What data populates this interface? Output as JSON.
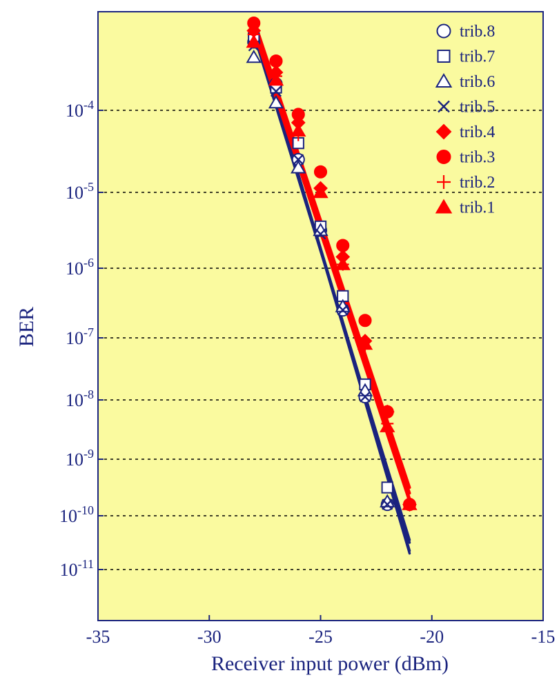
{
  "chart_data": {
    "type": "scatter",
    "title": "",
    "xlabel": "Receiver input power (dBm)",
    "ylabel": "BER",
    "xlim": [
      -35,
      -15
    ],
    "ylim_exp": [
      -12,
      -2.7
    ],
    "y_scale": "log",
    "x_ticks": [
      "-35",
      "-30",
      "-25",
      "-20",
      "-15"
    ],
    "x_tick_values": [
      -35,
      -30,
      -25,
      -20,
      -15
    ],
    "y_tick_exps": [
      -4,
      -5,
      -6,
      -7,
      -8,
      -9,
      -10,
      -11
    ],
    "y_ticks": [
      {
        "base": "10",
        "exp": "-4"
      },
      {
        "base": "10",
        "exp": "-5"
      },
      {
        "base": "10",
        "exp": "-6"
      },
      {
        "base": "10",
        "exp": "-7"
      },
      {
        "base": "10",
        "exp": "-8"
      },
      {
        "base": "10",
        "exp": "-9"
      },
      {
        "base": "10",
        "exp": "-10"
      },
      {
        "base": "10",
        "exp": "-11"
      }
    ],
    "grid": "horizontal-dotted",
    "legend_position": "top-right",
    "colors": {
      "plot_bg": "#fafa9f",
      "blue": "#1a237e",
      "red": "#ff0000",
      "grid": "#000000"
    },
    "series": [
      {
        "name": "trib.8",
        "marker": "circle-open",
        "color": "#1a237e",
        "x": [
          -28,
          -27,
          -26,
          -25,
          -24,
          -23,
          -22
        ],
        "log10_ber": [
          -3.1,
          -3.65,
          -4.6,
          -5.5,
          -6.6,
          -7.95,
          -9.8
        ],
        "fit": [
          [
            -28,
            -2.85
          ],
          [
            -21,
            -10.7
          ]
        ]
      },
      {
        "name": "trib.7",
        "marker": "square-open",
        "color": "#1a237e",
        "x": [
          -28,
          -27,
          -26,
          -25,
          -24,
          -23,
          -22
        ],
        "log10_ber": [
          -3.05,
          -3.7,
          -4.4,
          -5.45,
          -6.4,
          -7.75,
          -9.5
        ],
        "fit": [
          [
            -28,
            -2.9
          ],
          [
            -21,
            -10.5
          ]
        ]
      },
      {
        "name": "trib.6",
        "marker": "triangle-open",
        "color": "#1a237e",
        "x": [
          -28,
          -27,
          -26,
          -25,
          -24,
          -23,
          -22
        ],
        "log10_ber": [
          -3.3,
          -3.9,
          -4.7,
          -5.5,
          -6.55,
          -7.85,
          -9.75
        ],
        "fit": [
          [
            -28,
            -3.0
          ],
          [
            -21,
            -10.45
          ]
        ]
      },
      {
        "name": "trib.5",
        "marker": "x",
        "color": "#1a237e",
        "x": [
          -28,
          -27,
          -26,
          -25,
          -24,
          -23,
          -22
        ],
        "log10_ber": [
          -3.15,
          -3.75,
          -4.6,
          -5.55,
          -6.6,
          -7.95,
          -9.8
        ],
        "fit": [
          [
            -28,
            -2.85
          ],
          [
            -21,
            -10.65
          ]
        ]
      },
      {
        "name": "trib.4",
        "marker": "diamond-filled",
        "color": "#ff0000",
        "x": [
          -28,
          -27,
          -26,
          -25,
          -24,
          -23,
          -22,
          -21
        ],
        "log10_ber": [
          -2.95,
          -3.5,
          -4.15,
          -4.95,
          -5.85,
          -7.05,
          -8.2,
          -9.8
        ],
        "fit": [
          [
            -28,
            -2.85
          ],
          [
            -21,
            -9.6
          ]
        ]
      },
      {
        "name": "trib.3",
        "marker": "circle-filled",
        "color": "#ff0000",
        "x": [
          -28,
          -27,
          -26,
          -25,
          -24,
          -23,
          -22,
          -21
        ],
        "log10_ber": [
          -2.85,
          -3.35,
          -4.05,
          -4.75,
          -5.7,
          -6.75,
          -8.2,
          -9.8
        ],
        "fit": [
          [
            -28,
            -2.8
          ],
          [
            -21,
            -9.5
          ]
        ]
      },
      {
        "name": "trib.2",
        "marker": "plus",
        "color": "#ff0000",
        "x": [
          -28,
          -27,
          -26,
          -25,
          -24,
          -23,
          -22,
          -21
        ],
        "log10_ber": [
          -3.0,
          -3.55,
          -4.3,
          -4.95,
          -5.95,
          -7.15,
          -8.4,
          -9.8
        ],
        "fit": [
          [
            -28,
            -2.95
          ],
          [
            -21,
            -9.7
          ]
        ]
      },
      {
        "name": "trib.1",
        "marker": "triangle-filled",
        "color": "#ff0000",
        "x": [
          -28,
          -27,
          -26,
          -25,
          -24,
          -23,
          -22,
          -21
        ],
        "log10_ber": [
          -3.1,
          -3.6,
          -4.25,
          -5.0,
          -5.95,
          -7.1,
          -8.45,
          -9.8
        ],
        "fit": [
          [
            -28,
            -2.95
          ],
          [
            -21,
            -9.75
          ]
        ]
      }
    ]
  }
}
